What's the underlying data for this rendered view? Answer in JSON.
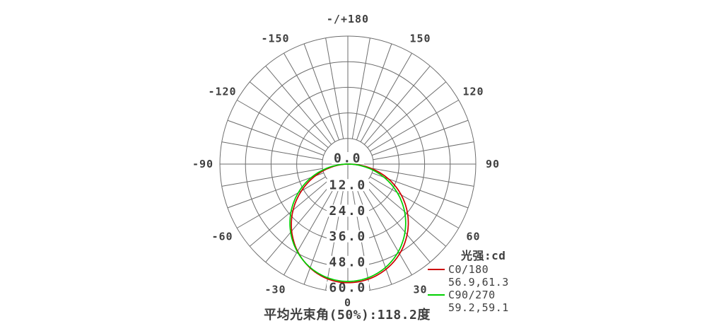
{
  "chart_data": {
    "type": "polar",
    "subtype": "photometric_intensity_distribution",
    "unit": "cd",
    "legend_title": "光强:cd",
    "footer": "平均光束角(50%):118.2度",
    "avg_beam_angle_50pct_deg": 118.2,
    "grid_step_deg": 10,
    "radial_max": 60,
    "radial_ticks": [
      0,
      12,
      24,
      36,
      48,
      60
    ],
    "radial_tick_labels": [
      "0.0",
      "12.0",
      "24.0",
      "36.0",
      "48.0",
      "60.0"
    ],
    "angle_ticks": [
      {
        "deg": 180,
        "label": "-/+180"
      },
      {
        "deg": 150,
        "label": "150"
      },
      {
        "deg": 120,
        "label": "120"
      },
      {
        "deg": 90,
        "label": "90"
      },
      {
        "deg": 60,
        "label": "60"
      },
      {
        "deg": 30,
        "label": "30"
      },
      {
        "deg": 0,
        "label": "0"
      },
      {
        "deg": -30,
        "label": "-30"
      },
      {
        "deg": -60,
        "label": "-60"
      },
      {
        "deg": -90,
        "label": "-90"
      },
      {
        "deg": -120,
        "label": "-120"
      },
      {
        "deg": -150,
        "label": "-150"
      }
    ],
    "sample_angles_deg": [
      -90,
      -75,
      -60,
      -45,
      -30,
      -15,
      0,
      15,
      30,
      45,
      60,
      75,
      90
    ],
    "series": [
      {
        "name": "C0/180",
        "color": "#cc0000",
        "legend_values": "56.9,61.3",
        "half_angle_left_deg": 56.9,
        "half_angle_right_deg": 61.3,
        "peak_cd": 55.6,
        "est_intensity_cd": [
          0,
          11.8,
          25.2,
          37.4,
          47.2,
          53.4,
          55.6,
          53.8,
          48.5,
          40.1,
          28.9,
          15.5,
          0
        ]
      },
      {
        "name": "C90/270",
        "color": "#00d000",
        "legend_values": "59.2,59.1",
        "half_angle_left_deg": 59.2,
        "half_angle_right_deg": 59.1,
        "peak_cd": 55.0,
        "est_intensity_cd": [
          0,
          13.6,
          26.8,
          38.4,
          47.4,
          53.1,
          55.0,
          53.0,
          47.3,
          38.3,
          26.7,
          13.5,
          0
        ]
      }
    ],
    "colors": {
      "grid": "#6d6d6d",
      "text": "#3f3f3f",
      "background": "#ffffff"
    }
  }
}
